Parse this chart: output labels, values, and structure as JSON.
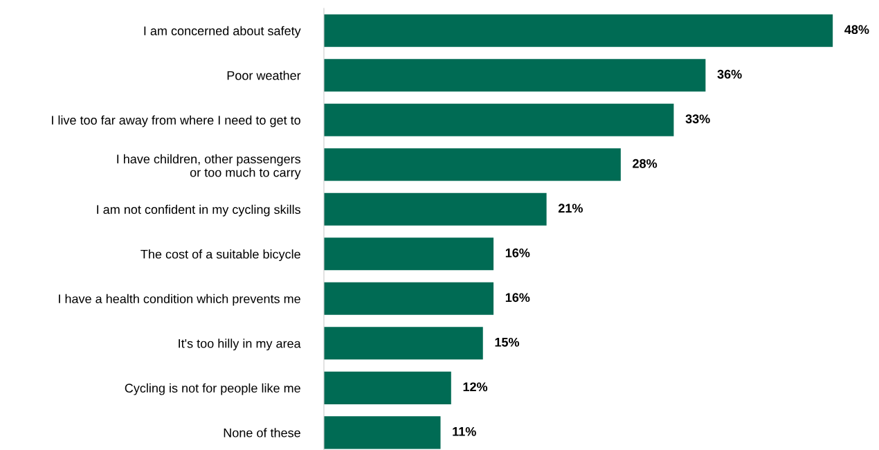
{
  "chart_data": {
    "type": "bar",
    "orientation": "horizontal",
    "categories": [
      "I am concerned about safety",
      "Poor weather",
      "I live too far away from where I need to get to",
      "I have children, other passengers\nor too much to carry",
      "I am not confident in my cycling skills",
      "The cost of a suitable bicycle",
      "I have a health condition which prevents me",
      "It's too hilly in my area",
      "Cycling is not for people like me",
      "None of these"
    ],
    "values": [
      48,
      36,
      33,
      28,
      21,
      16,
      16,
      15,
      12,
      11
    ],
    "value_labels": [
      "48%",
      "36%",
      "33%",
      "28%",
      "21%",
      "16%",
      "16%",
      "15%",
      "12%",
      "11%"
    ],
    "color": "#006b54",
    "grid": false,
    "legend": false
  }
}
